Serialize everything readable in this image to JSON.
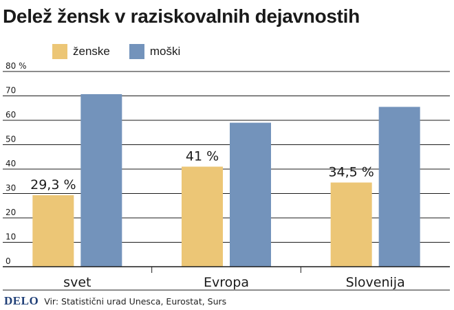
{
  "title": "Delež žensk v raziskovalnih dejavnostih",
  "logo": "DELO",
  "source": "Vir: Statistični urad Unesca, Eurostat, Surs",
  "colors": {
    "zenske": "#ecc676",
    "moski": "#7393bb",
    "grid": "#1a1a1a",
    "text": "#1a1a1a"
  },
  "chart_data": {
    "type": "bar",
    "title": "Delež žensk v raziskovalnih dejavnostih",
    "categories": [
      "svet",
      "Evropa",
      "Slovenija"
    ],
    "series": [
      {
        "name": "ženske",
        "color": "#ecc676",
        "values": [
          29.3,
          41,
          34.5
        ]
      },
      {
        "name": "moški",
        "color": "#7393bb",
        "values": [
          70.7,
          59,
          65.5
        ]
      }
    ],
    "data_labels": [
      "29,3 %",
      "41 %",
      "34,5 %"
    ],
    "ylim": [
      0,
      80
    ],
    "yticks": [
      0,
      10,
      20,
      30,
      40,
      50,
      60,
      70,
      80
    ],
    "ytick_labels": [
      "0",
      "10",
      "20",
      "30",
      "40",
      "50",
      "60",
      "70",
      "80 %"
    ],
    "grid": true,
    "legend": "top-left"
  }
}
